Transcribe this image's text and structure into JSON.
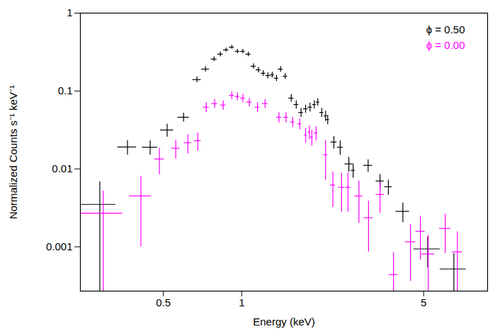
{
  "chart_data": {
    "type": "scatter",
    "x_label": "Energy (keV)",
    "y_label": "Normalized Counts s⁻¹ keV⁻¹",
    "log": true,
    "grid": false,
    "legend": "top-right",
    "xlim": [
      0.24,
      8.8
    ],
    "ylim": [
      0.00027,
      1
    ],
    "xticks": [
      0.5,
      1,
      5
    ],
    "yticks": [
      0.001,
      0.01,
      0.1,
      1
    ],
    "series": [
      {
        "name": "ϕ = 0.50",
        "color": "#000000",
        "x": [
          0.285,
          0.364,
          0.445,
          0.517,
          0.598,
          0.673,
          0.726,
          0.783,
          0.828,
          0.871,
          0.916,
          0.963,
          1.01,
          1.06,
          1.11,
          1.16,
          1.21,
          1.26,
          1.31,
          1.36,
          1.41,
          1.47,
          1.55,
          1.62,
          1.69,
          1.76,
          1.83,
          1.9,
          1.96,
          2.03,
          2.1,
          2.14,
          2.26,
          2.39,
          2.58,
          2.68,
          3.06,
          3.4,
          3.66,
          4.16,
          5.18,
          6.53
        ],
        "values": [
          0.0035,
          0.0191,
          0.019,
          0.0316,
          0.046,
          0.14,
          0.191,
          0.257,
          0.297,
          0.337,
          0.366,
          0.323,
          0.323,
          0.297,
          0.208,
          0.187,
          0.169,
          0.158,
          0.161,
          0.146,
          0.191,
          0.155,
          0.081,
          0.067,
          0.053,
          0.059,
          0.062,
          0.067,
          0.072,
          0.053,
          0.048,
          0.043,
          0.0221,
          0.019,
          0.0116,
          0.0096,
          0.0111,
          0.007,
          0.0059,
          0.00285,
          0.00094,
          0.00052
        ],
        "x_err": [
          0.043,
          0.03,
          0.03,
          0.03,
          0.03,
          0.025,
          0.025,
          0.02,
          0.02,
          0.02,
          0.02,
          0.02,
          0.02,
          0.025,
          0.025,
          0.025,
          0.025,
          0.025,
          0.025,
          0.025,
          0.03,
          0.03,
          0.035,
          0.035,
          0.035,
          0.035,
          0.035,
          0.03,
          0.03,
          0.035,
          0.03,
          0.03,
          0.06,
          0.06,
          0.09,
          0.05,
          0.12,
          0.12,
          0.12,
          0.25,
          0.6,
          0.75
        ],
        "y_err": [
          0.0033,
          0.004,
          0.004,
          0.006,
          0.006,
          0.012,
          0.015,
          0.018,
          0.02,
          0.02,
          0.02,
          0.02,
          0.02,
          0.02,
          0.016,
          0.015,
          0.014,
          0.014,
          0.014,
          0.013,
          0.015,
          0.013,
          0.009,
          0.008,
          0.007,
          0.007,
          0.008,
          0.008,
          0.008,
          0.007,
          0.007,
          0.006,
          0.004,
          0.004,
          0.0025,
          0.002,
          0.002,
          0.0015,
          0.0013,
          0.0008,
          0.0004,
          0.0003
        ]
      },
      {
        "name": "ϕ = 0.00",
        "color": "#ff00ff",
        "x": [
          0.294,
          0.41,
          0.483,
          0.558,
          0.621,
          0.678,
          0.731,
          0.787,
          0.849,
          0.916,
          0.963,
          1.01,
          1.07,
          1.15,
          1.23,
          1.39,
          1.48,
          1.57,
          1.67,
          1.76,
          1.82,
          1.86,
          1.93,
          2.1,
          2.24,
          2.42,
          2.56,
          2.82,
          3.07,
          3.4,
          3.83,
          4.45,
          4.86,
          5.21,
          6.05,
          6.74
        ],
        "values": [
          0.0027,
          0.0045,
          0.0134,
          0.0184,
          0.0217,
          0.023,
          0.062,
          0.069,
          0.066,
          0.088,
          0.085,
          0.081,
          0.072,
          0.062,
          0.069,
          0.046,
          0.046,
          0.04,
          0.038,
          0.0273,
          0.0297,
          0.0257,
          0.029,
          0.0152,
          0.0062,
          0.0058,
          0.0058,
          0.0045,
          0.00236,
          0.0047,
          0.00044,
          0.00116,
          0.00158,
          0.00081,
          0.00172,
          0.00086
        ],
        "x_err": [
          0.054,
          0.04,
          0.02,
          0.02,
          0.02,
          0.02,
          0.02,
          0.02,
          0.02,
          0.02,
          0.02,
          0.02,
          0.025,
          0.025,
          0.03,
          0.03,
          0.03,
          0.03,
          0.03,
          0.02,
          0.02,
          0.02,
          0.03,
          0.04,
          0.05,
          0.06,
          0.06,
          0.1,
          0.12,
          0.12,
          0.15,
          0.2,
          0.2,
          0.3,
          0.3,
          0.3
        ],
        "y_err": [
          0.0025,
          0.0035,
          0.005,
          0.005,
          0.006,
          0.006,
          0.009,
          0.009,
          0.009,
          0.01,
          0.01,
          0.01,
          0.009,
          0.009,
          0.009,
          0.007,
          0.007,
          0.006,
          0.006,
          0.006,
          0.006,
          0.006,
          0.006,
          0.008,
          0.003,
          0.003,
          0.003,
          0.0025,
          0.0015,
          0.002,
          0.0004,
          0.0008,
          0.0009,
          0.0006,
          0.0009,
          0.0007
        ]
      }
    ]
  }
}
